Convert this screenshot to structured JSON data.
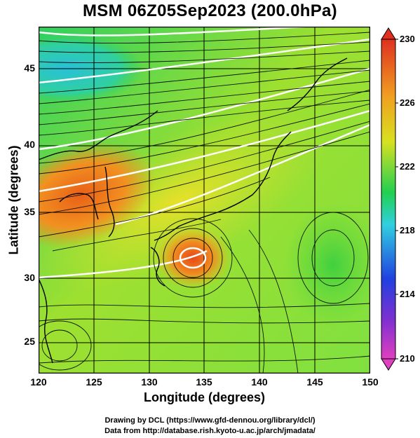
{
  "title": "MSM 06Z05Sep2023 (200.0hPa)",
  "xlabel": "Longitude (degrees)",
  "ylabel": "Latitude  (degrees)",
  "x_ticks": [
    "120",
    "125",
    "130",
    "135",
    "140",
    "145",
    "150"
  ],
  "y_ticks": [
    "25",
    "30",
    "35",
    "40",
    "45"
  ],
  "colorbar_ticks": [
    "230",
    "226",
    "222",
    "218",
    "214",
    "210"
  ],
  "credit_line1": "Drawing by DCL (https://www.gfd-dennou.org/library/dcl/)",
  "credit_line2": "Data from http://database.rish.kyoto-u.ac.jp/arch/jmadata/",
  "chart_data": {
    "type": "heatmap",
    "title": "MSM 06Z05Sep2023 (200.0hPa)",
    "xlabel": "Longitude (degrees)",
    "ylabel": "Latitude  (degrees)",
    "xlim": [
      120,
      150
    ],
    "ylim": [
      22.5,
      47.5
    ],
    "colorbar_range": [
      210,
      230
    ],
    "colorbar_ticks": [
      210,
      214,
      218,
      222,
      226,
      230
    ],
    "colormap": [
      "#e040c0",
      "#3040e0",
      "#30d0e0",
      "#20d040",
      "#d0e020",
      "#f08020",
      "#e03020"
    ],
    "overlays": [
      "streamlines",
      "contours",
      "coastlines",
      "grid"
    ]
  }
}
